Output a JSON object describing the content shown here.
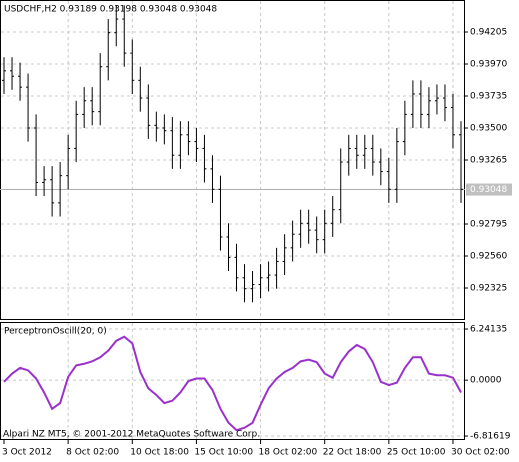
{
  "chart_data": [
    {
      "type": "ohlc",
      "title": "USDCHF,H2  0.93189 0.93198 0.93048 0.93048",
      "color": "#000000",
      "grid": true,
      "categories": [
        "3 Oct 2012",
        null,
        null,
        null,
        null,
        null,
        null,
        null,
        "8 Oct 02:00",
        null,
        null,
        null,
        null,
        null,
        null,
        null,
        "10 Oct 18:00",
        null,
        null,
        null,
        null,
        null,
        null,
        null,
        "15 Oct 10:00",
        null,
        null,
        null,
        null,
        null,
        null,
        null,
        "18 Oct 02:00",
        null,
        null,
        null,
        null,
        null,
        null,
        null,
        "22 Oct 18:00",
        null,
        null,
        null,
        null,
        null,
        null,
        null,
        "25 Oct 10:00",
        null,
        null,
        null,
        null,
        null,
        null,
        null,
        "30 Oct 02:00",
        null
      ],
      "open": [
        0.9385,
        0.9392,
        0.9388,
        0.938,
        0.935,
        0.931,
        0.9312,
        0.9295,
        0.9315,
        0.9335,
        0.936,
        0.937,
        0.9362,
        0.9395,
        0.942,
        0.943,
        0.9405,
        0.9385,
        0.9372,
        0.9352,
        0.935,
        0.9348,
        0.933,
        0.9345,
        0.934,
        0.9335,
        0.932,
        0.9305,
        0.927,
        0.9255,
        0.924,
        0.9232,
        0.9235,
        0.924,
        0.9242,
        0.9252,
        0.9262,
        0.9272,
        0.928,
        0.9275,
        0.9268,
        0.928,
        0.929,
        0.9325,
        0.9335,
        0.933,
        0.9335,
        0.9325,
        0.9318,
        0.9305,
        0.934,
        0.936,
        0.9375,
        0.936,
        0.937,
        0.9372,
        0.9365,
        0.9345
      ],
      "high": [
        0.9402,
        0.9402,
        0.9398,
        0.939,
        0.936,
        0.9322,
        0.9322,
        0.9325,
        0.9345,
        0.937,
        0.938,
        0.938,
        0.9405,
        0.943,
        0.944,
        0.944,
        0.9415,
        0.9395,
        0.9382,
        0.9362,
        0.936,
        0.9358,
        0.9355,
        0.9355,
        0.935,
        0.9345,
        0.933,
        0.9315,
        0.928,
        0.9265,
        0.925,
        0.9245,
        0.925,
        0.9252,
        0.9262,
        0.9272,
        0.9282,
        0.929,
        0.929,
        0.9285,
        0.929,
        0.93,
        0.9335,
        0.9345,
        0.9345,
        0.9345,
        0.9345,
        0.9335,
        0.9328,
        0.935,
        0.937,
        0.9385,
        0.9385,
        0.938,
        0.9382,
        0.9382,
        0.9375,
        0.9355
      ],
      "low": [
        0.9375,
        0.9378,
        0.937,
        0.934,
        0.93,
        0.93,
        0.9285,
        0.9285,
        0.9305,
        0.9325,
        0.935,
        0.9352,
        0.9352,
        0.9385,
        0.941,
        0.9395,
        0.9375,
        0.9362,
        0.9342,
        0.934,
        0.9338,
        0.932,
        0.932,
        0.933,
        0.9325,
        0.931,
        0.9295,
        0.926,
        0.9245,
        0.923,
        0.9222,
        0.9222,
        0.9225,
        0.923,
        0.9232,
        0.9242,
        0.9252,
        0.9262,
        0.9265,
        0.9258,
        0.9258,
        0.927,
        0.928,
        0.9315,
        0.932,
        0.932,
        0.9315,
        0.9308,
        0.9295,
        0.9295,
        0.933,
        0.935,
        0.935,
        0.935,
        0.936,
        0.9355,
        0.9335,
        0.9295
      ],
      "close": [
        0.9392,
        0.9388,
        0.938,
        0.935,
        0.931,
        0.9312,
        0.9295,
        0.9315,
        0.9335,
        0.936,
        0.937,
        0.9362,
        0.9395,
        0.942,
        0.943,
        0.9405,
        0.9385,
        0.9372,
        0.9352,
        0.935,
        0.9348,
        0.933,
        0.9345,
        0.934,
        0.9335,
        0.932,
        0.9305,
        0.927,
        0.9255,
        0.924,
        0.9232,
        0.9235,
        0.924,
        0.9242,
        0.9252,
        0.9262,
        0.9272,
        0.928,
        0.9275,
        0.9268,
        0.928,
        0.929,
        0.9325,
        0.9335,
        0.933,
        0.9335,
        0.9325,
        0.9318,
        0.9305,
        0.934,
        0.936,
        0.9375,
        0.936,
        0.937,
        0.9372,
        0.9365,
        0.9345,
        0.9305
      ],
      "current": 0.93048,
      "ylim": [
        0.9209,
        0.9444
      ],
      "yticks": [
        0.92325,
        {
          "value": 0.9256,
          "label": "0.92560"
        },
        0.92795,
        0.93265,
        {
          "value": 0.935,
          "label": "0.93500"
        },
        0.93735,
        {
          "value": 0.9397,
          "label": "0.93970"
        },
        0.94205
      ]
    },
    {
      "type": "line",
      "title": "PerceptronOscill(20, 0)",
      "color": "#9932cc",
      "grid": true,
      "values": [
        -0.2,
        0.8,
        1.5,
        1.2,
        0.2,
        -1.5,
        -3.5,
        -2.8,
        0.4,
        1.8,
        2.0,
        2.3,
        2.8,
        3.6,
        4.8,
        5.3,
        4.5,
        1.0,
        -1.0,
        -1.8,
        -2.8,
        -2.5,
        -1.5,
        -0.1,
        0.2,
        0.2,
        -1.2,
        -3.5,
        -5.2,
        -6.1,
        -5.8,
        -5.2,
        -3.0,
        -1.0,
        0.2,
        1.0,
        1.5,
        2.3,
        2.5,
        2.2,
        0.8,
        0.3,
        2.2,
        3.5,
        4.3,
        3.8,
        2.2,
        -0.2,
        -0.6,
        -0.3,
        1.5,
        2.8,
        2.8,
        0.8,
        0.6,
        0.6,
        0.3,
        -1.5
      ],
      "ylim": [
        -7.3,
        7.1
      ],
      "yticks": [
        6.24135,
        {
          "value": 0,
          "label": "0.0000"
        },
        -6.81619
      ],
      "footer": "Alpari NZ MT5, © 2001-2012 MetaQuotes Software Corp."
    }
  ]
}
